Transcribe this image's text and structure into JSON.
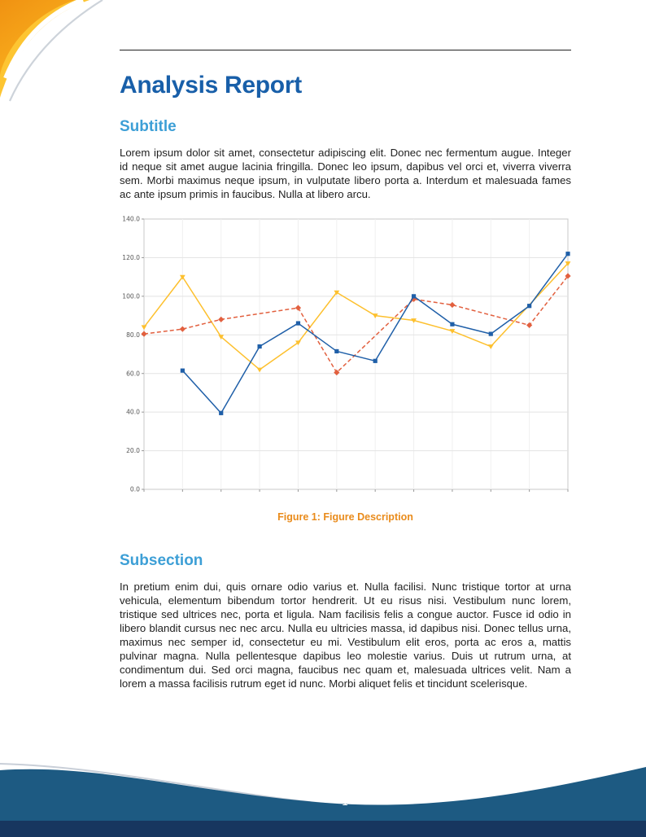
{
  "page": {
    "title": "Analysis Report",
    "page_number": "1"
  },
  "sections": [
    {
      "heading": "Subtitle",
      "body": "Lorem ipsum dolor sit amet, consectetur adipiscing elit. Donec nec fermentum augue. Integer id neque sit amet augue lacinia fringilla. Donec leo ipsum, dapibus vel orci et, viverra viverra sem. Morbi maximus neque ipsum, in vulputate libero porta a. Interdum et malesuada fames ac ante ipsum primis in faucibus. Nulla at libero arcu."
    },
    {
      "heading": "Subsection",
      "body": "In pretium enim dui, quis ornare odio varius et. Nulla facilisi. Nunc tristique tortor at urna vehicula, elementum bibendum tortor hendrerit. Ut eu risus nisi. Vestibulum nunc lorem, tristique sed ultrices nec, porta et ligula. Nam facilisis felis a congue auctor. Fusce id odio in libero blandit cursus nec nec arcu. Nulla eu ultricies massa, id dapibus nisi. Donec tellus urna, maximus nec semper id, consectetur eu mi. Vestibulum elit eros, porta ac eros a, mattis pulvinar magna. Nulla pellentesque dapibus leo molestie varius. Duis ut rutrum urna, at condimentum dui. Sed orci magna, faucibus nec quam et, malesuada ultrices velit. Nam a lorem a massa facilisis rutrum eget id nunc. Morbi aliquet felis et tincidunt scelerisque."
    }
  ],
  "figure": {
    "caption_label": "Figure 1:",
    "caption_text": "Figure Description"
  },
  "chart_data": {
    "type": "line",
    "title": "",
    "xlabel": "",
    "ylabel": "",
    "grid": true,
    "legend": "none",
    "xlim": [
      1,
      12
    ],
    "ylim": [
      0,
      140
    ],
    "y_tick_step": 20,
    "y_ticks": [
      "0.0",
      "20.0",
      "40.0",
      "60.0",
      "80.0",
      "100.0",
      "120.0",
      "140.0"
    ],
    "series": [
      {
        "name": "series-yellow",
        "color": "#fdc02e",
        "marker": "triangle",
        "dash": false,
        "x": [
          1,
          2,
          3,
          4,
          5,
          6,
          7,
          8,
          9,
          10,
          12
        ],
        "values": [
          84,
          110,
          79,
          62,
          76,
          102,
          90,
          87.5,
          82,
          74,
          117
        ]
      },
      {
        "name": "series-red-dashed",
        "color": "#e2603f",
        "marker": "diamond",
        "dash": true,
        "x": [
          1,
          2,
          3,
          5,
          6,
          8,
          9,
          11,
          12
        ],
        "values": [
          80.5,
          83,
          88,
          94,
          60.5,
          98.5,
          95.5,
          85,
          110.5
        ]
      },
      {
        "name": "series-blue",
        "color": "#1f5fa8",
        "marker": "square",
        "dash": false,
        "x": [
          2,
          3,
          4,
          5,
          6,
          7,
          8,
          9,
          10,
          11,
          12
        ],
        "values": [
          61.5,
          39.5,
          74,
          86,
          71.5,
          66.5,
          100,
          85.5,
          80.5,
          95,
          122
        ]
      }
    ]
  },
  "colors": {
    "title_blue": "#185fa9",
    "heading_blue": "#3d9fd6",
    "caption_orange": "#e98b1b",
    "corner_orange": "#f09212",
    "corner_yellow": "#fdc532",
    "footer_wave_blue": "#1d5a82",
    "footer_strip_navy": "#17365f"
  }
}
